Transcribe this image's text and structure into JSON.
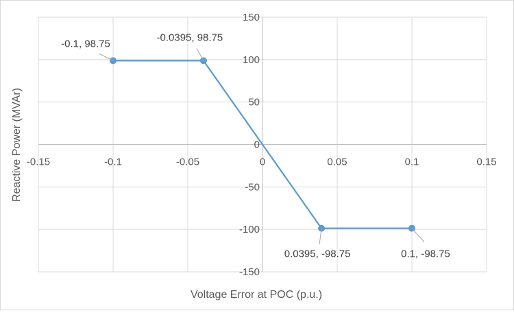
{
  "chart_data": {
    "type": "scatter",
    "title": "",
    "xlabel": "Voltage Error at POC (p.u.)",
    "ylabel": "Reactive Power (MVAr)",
    "xlim": [
      -0.15,
      0.15
    ],
    "ylim": [
      -150,
      150
    ],
    "xticks": [
      -0.15,
      -0.1,
      -0.05,
      0,
      0.05,
      0.1,
      0.15
    ],
    "xtick_labels": [
      "-0.15",
      "-0.1",
      "-0.05",
      "0",
      "0.05",
      "0.1",
      "0.15"
    ],
    "yticks": [
      150,
      100,
      50,
      0,
      -50,
      -100,
      -150
    ],
    "ytick_labels": [
      "150",
      "100",
      "50",
      "0",
      "-50",
      "-100",
      "-150"
    ],
    "grid": true,
    "series": [
      {
        "color": "#5b9bd5",
        "points": [
          {
            "x": -0.1,
            "y": 98.75,
            "label": "-0.1, 98.75",
            "marker": true
          },
          {
            "x": -0.0395,
            "y": 98.75,
            "label": "-0.0395, 98.75",
            "marker": true
          },
          {
            "x": 0,
            "y": 0,
            "label": "",
            "marker": false
          },
          {
            "x": 0.0395,
            "y": -98.75,
            "label": "0.0395, -98.75",
            "marker": true
          },
          {
            "x": 0.1,
            "y": -98.75,
            "label": "0.1, -98.75",
            "marker": true
          }
        ]
      }
    ]
  }
}
